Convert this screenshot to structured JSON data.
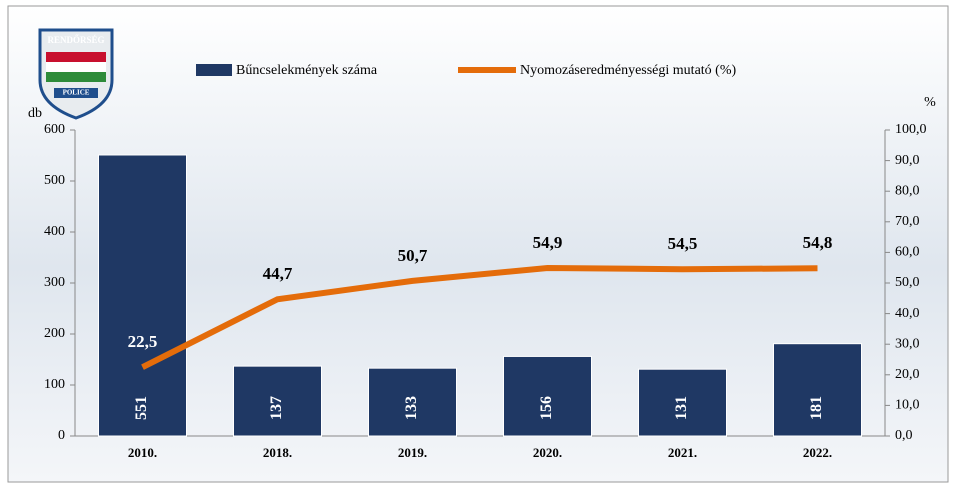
{
  "logo": {
    "top": "RENDŐRSÉG",
    "bottom": "POLICE"
  },
  "chart_data": {
    "type": "bar",
    "categories": [
      "2010.",
      "2018.",
      "2019.",
      "2020.",
      "2021.",
      "2022."
    ],
    "ylabel": "db",
    "y2label": "%",
    "ylim": [
      0,
      600
    ],
    "yticks": [
      0,
      100,
      200,
      300,
      400,
      500,
      600
    ],
    "y2lim": [
      0,
      100
    ],
    "y2ticks": [
      {
        "value": 0,
        "label": "0,0"
      },
      {
        "value": 10,
        "label": "10,0"
      },
      {
        "value": 20,
        "label": "20,0"
      },
      {
        "value": 30,
        "label": "30,0"
      },
      {
        "value": 40,
        "label": "40,0"
      },
      {
        "value": 50,
        "label": "50,0"
      },
      {
        "value": 60,
        "label": "60,0"
      },
      {
        "value": 70,
        "label": "70,0"
      },
      {
        "value": 80,
        "label": "80,0"
      },
      {
        "value": 90,
        "label": "90,0"
      },
      {
        "value": 100,
        "label": "100,0"
      }
    ],
    "series": [
      {
        "name": "Bűncselekmények száma",
        "type": "bar",
        "color": "#1f3864",
        "values": [
          551,
          137,
          133,
          156,
          131,
          181
        ]
      },
      {
        "name": "Nyomozáseredményességi mutató (%)",
        "type": "line",
        "axis": "y2",
        "color": "#e46c0a",
        "values": [
          22.5,
          44.7,
          50.7,
          54.9,
          54.5,
          54.8
        ],
        "value_labels": [
          "22,5",
          "44,7",
          "50,7",
          "54,9",
          "54,5",
          "54,8"
        ]
      }
    ]
  }
}
